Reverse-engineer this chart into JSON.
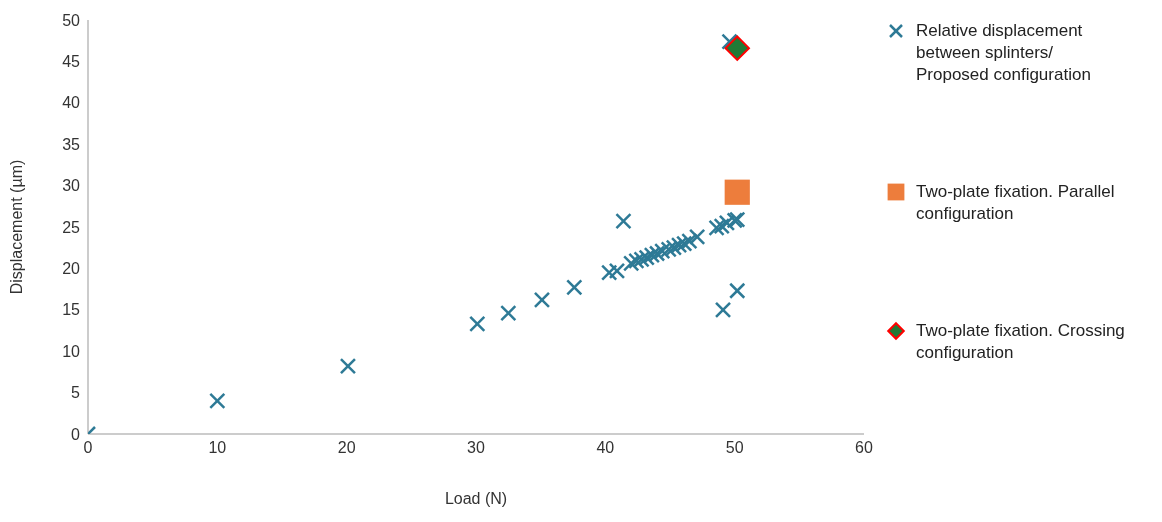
{
  "chart_data": {
    "type": "scatter",
    "xlabel": "Load (N)",
    "ylabel": "Displacement (µm)",
    "xlim": [
      0,
      60
    ],
    "xticks": [
      0,
      10,
      20,
      30,
      40,
      50,
      60
    ],
    "ylim": [
      0,
      50
    ],
    "yticks": [
      0,
      5,
      10,
      15,
      20,
      25,
      30,
      35,
      40,
      45,
      50
    ],
    "grid": false,
    "legend": "right",
    "series": [
      {
        "name": "Relative displacement between splinters/ Proposed configuration",
        "color": "#2e7a96",
        "marker": "cross",
        "x": [
          0,
          10,
          20.1,
          30.1,
          32.5,
          35.1,
          37.6,
          40.3,
          40.9,
          41.4,
          42.0,
          42.4,
          42.8,
          43.2,
          43.6,
          44.0,
          44.4,
          44.9,
          45.3,
          45.7,
          46.1,
          46.5,
          47.1,
          48.6,
          49.0,
          49.4,
          50.0,
          50.2,
          49.1,
          50.2,
          49.6
        ],
        "values": [
          0,
          4,
          8.2,
          13.3,
          14.6,
          16.2,
          17.7,
          19.5,
          19.7,
          25.7,
          20.6,
          20.9,
          21.1,
          21.3,
          21.6,
          21.8,
          22.1,
          22.3,
          22.5,
          22.8,
          23.0,
          23.3,
          23.8,
          24.9,
          25.1,
          25.5,
          25.8,
          25.9,
          15.0,
          17.3,
          47.4
        ]
      },
      {
        "name": "Two-plate fixation. Parallel configuration",
        "color": "#ed7d3c",
        "marker": "square",
        "x": [
          50.2
        ],
        "values": [
          29.2
        ]
      },
      {
        "name": "Two-plate fixation. Crossing configuration",
        "color": "#217a36",
        "marker": "diamond",
        "x": [
          50.2
        ],
        "values": [
          46.6
        ]
      }
    ]
  }
}
